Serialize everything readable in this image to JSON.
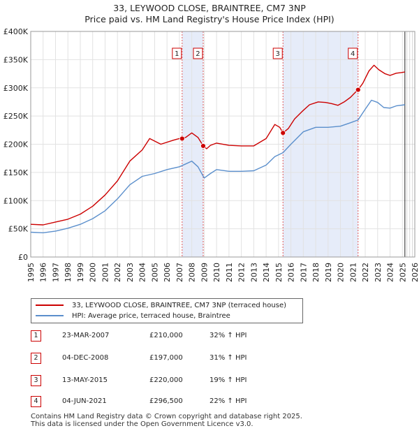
{
  "title_line1": "33, LEYWOOD CLOSE, BRAINTREE, CM7 3NP",
  "title_line2": "Price paid vs. HM Land Registry's House Price Index (HPI)",
  "colors": {
    "property_line": "#cc0000",
    "hpi_line": "#5b8fcc",
    "shade": "#dde6f7",
    "marker_line": "#e05a5a",
    "grid": "#e2e2e2"
  },
  "chart_data": {
    "type": "line",
    "title": "33, LEYWOOD CLOSE, BRAINTREE, CM7 3NP - Price paid vs. HM Land Registry's House Price Index (HPI)",
    "xlabel": "",
    "ylabel": "",
    "xlim": [
      1995,
      2026
    ],
    "ylim": [
      0,
      400000
    ],
    "y_ticks": [
      0,
      50000,
      100000,
      150000,
      200000,
      250000,
      300000,
      350000,
      400000
    ],
    "y_tick_labels": [
      "£0",
      "£50K",
      "£100K",
      "£150K",
      "£200K",
      "£250K",
      "£300K",
      "£350K",
      "£400K"
    ],
    "x_ticks": [
      1995,
      1996,
      1997,
      1998,
      1999,
      2000,
      2001,
      2002,
      2003,
      2004,
      2005,
      2006,
      2007,
      2008,
      2009,
      2010,
      2011,
      2012,
      2013,
      2014,
      2015,
      2016,
      2017,
      2018,
      2019,
      2020,
      2021,
      2022,
      2023,
      2024,
      2025,
      2026
    ],
    "x_tick_labels": [
      "1995",
      "1996",
      "1997",
      "1998",
      "1999",
      "2000",
      "2001",
      "2002",
      "2003",
      "2004",
      "2005",
      "2006",
      "2007",
      "2008",
      "2009",
      "2010",
      "2011",
      "2012",
      "2013",
      "2014",
      "2015",
      "2016",
      "2017",
      "2018",
      "2019",
      "2020",
      "2021",
      "2022",
      "2023",
      "2024",
      "2025",
      "2026"
    ],
    "grid": true,
    "data_end_year": 2025.2,
    "series": [
      {
        "name": "33, LEYWOOD CLOSE, BRAINTREE, CM7 3NP (terraced house)",
        "color": "#cc0000",
        "points": [
          [
            1995.0,
            58000
          ],
          [
            1996.0,
            57000
          ],
          [
            1997.0,
            62000
          ],
          [
            1998.0,
            67000
          ],
          [
            1999.0,
            76000
          ],
          [
            2000.0,
            90000
          ],
          [
            2001.0,
            110000
          ],
          [
            2002.0,
            135000
          ],
          [
            2003.0,
            170000
          ],
          [
            2004.0,
            190000
          ],
          [
            2004.6,
            210000
          ],
          [
            2005.5,
            200000
          ],
          [
            2006.5,
            207000
          ],
          [
            2007.0,
            210000
          ],
          [
            2007.5,
            212000
          ],
          [
            2008.0,
            220000
          ],
          [
            2008.5,
            212000
          ],
          [
            2008.92,
            197000
          ],
          [
            2009.2,
            192000
          ],
          [
            2009.5,
            198000
          ],
          [
            2010.0,
            202000
          ],
          [
            2011.0,
            198000
          ],
          [
            2012.0,
            197000
          ],
          [
            2013.0,
            197000
          ],
          [
            2014.0,
            210000
          ],
          [
            2014.7,
            235000
          ],
          [
            2015.1,
            230000
          ],
          [
            2015.36,
            220000
          ],
          [
            2015.8,
            228000
          ],
          [
            2016.3,
            245000
          ],
          [
            2016.9,
            258000
          ],
          [
            2017.5,
            270000
          ],
          [
            2018.2,
            275000
          ],
          [
            2018.8,
            274000
          ],
          [
            2019.3,
            272000
          ],
          [
            2019.8,
            269000
          ],
          [
            2020.3,
            275000
          ],
          [
            2020.8,
            283000
          ],
          [
            2021.2,
            292000
          ],
          [
            2021.42,
            296500
          ],
          [
            2021.8,
            308000
          ],
          [
            2022.3,
            330000
          ],
          [
            2022.7,
            340000
          ],
          [
            2023.1,
            332000
          ],
          [
            2023.6,
            325000
          ],
          [
            2024.0,
            322000
          ],
          [
            2024.5,
            326000
          ],
          [
            2024.9,
            327000
          ],
          [
            2025.2,
            328000
          ]
        ]
      },
      {
        "name": "HPI: Average price, terraced house, Braintree",
        "color": "#5b8fcc",
        "points": [
          [
            1995.0,
            44000
          ],
          [
            1996.0,
            43000
          ],
          [
            1997.0,
            46000
          ],
          [
            1998.0,
            51000
          ],
          [
            1999.0,
            58000
          ],
          [
            2000.0,
            68000
          ],
          [
            2001.0,
            82000
          ],
          [
            2002.0,
            103000
          ],
          [
            2003.0,
            128000
          ],
          [
            2004.0,
            143000
          ],
          [
            2005.0,
            148000
          ],
          [
            2006.0,
            155000
          ],
          [
            2007.0,
            160000
          ],
          [
            2007.5,
            165000
          ],
          [
            2008.0,
            170000
          ],
          [
            2008.5,
            160000
          ],
          [
            2009.0,
            140000
          ],
          [
            2009.5,
            148000
          ],
          [
            2010.0,
            155000
          ],
          [
            2011.0,
            152000
          ],
          [
            2012.0,
            152000
          ],
          [
            2013.0,
            153000
          ],
          [
            2014.0,
            163000
          ],
          [
            2014.7,
            178000
          ],
          [
            2015.36,
            185000
          ],
          [
            2016.0,
            200000
          ],
          [
            2017.0,
            222000
          ],
          [
            2018.0,
            230000
          ],
          [
            2019.0,
            230000
          ],
          [
            2020.0,
            232000
          ],
          [
            2020.8,
            238000
          ],
          [
            2021.42,
            243000
          ],
          [
            2022.0,
            262000
          ],
          [
            2022.5,
            278000
          ],
          [
            2023.0,
            274000
          ],
          [
            2023.5,
            265000
          ],
          [
            2024.0,
            264000
          ],
          [
            2024.5,
            268000
          ],
          [
            2025.2,
            270000
          ]
        ]
      }
    ],
    "sales": [
      {
        "label": "1",
        "x": 2007.22,
        "price": 210000
      },
      {
        "label": "2",
        "x": 2008.92,
        "price": 197000
      },
      {
        "label": "3",
        "x": 2015.36,
        "price": 220000
      },
      {
        "label": "4",
        "x": 2021.42,
        "price": 296500
      }
    ],
    "shaded_ranges": [
      [
        2007.22,
        2008.92
      ],
      [
        2015.36,
        2021.42
      ]
    ]
  },
  "legend": {
    "property": "33, LEYWOOD CLOSE, BRAINTREE, CM7 3NP (terraced house)",
    "hpi": "HPI: Average price, terraced house, Braintree"
  },
  "sales_table": [
    {
      "num": "1",
      "date": "23-MAR-2007",
      "price": "£210,000",
      "hpi": "32% ↑ HPI"
    },
    {
      "num": "2",
      "date": "04-DEC-2008",
      "price": "£197,000",
      "hpi": "31% ↑ HPI"
    },
    {
      "num": "3",
      "date": "13-MAY-2015",
      "price": "£220,000",
      "hpi": "19% ↑ HPI"
    },
    {
      "num": "4",
      "date": "04-JUN-2021",
      "price": "£296,500",
      "hpi": "22% ↑ HPI"
    }
  ],
  "footer_line1": "Contains HM Land Registry data © Crown copyright and database right 2025.",
  "footer_line2": "This data is licensed under the Open Government Licence v3.0."
}
